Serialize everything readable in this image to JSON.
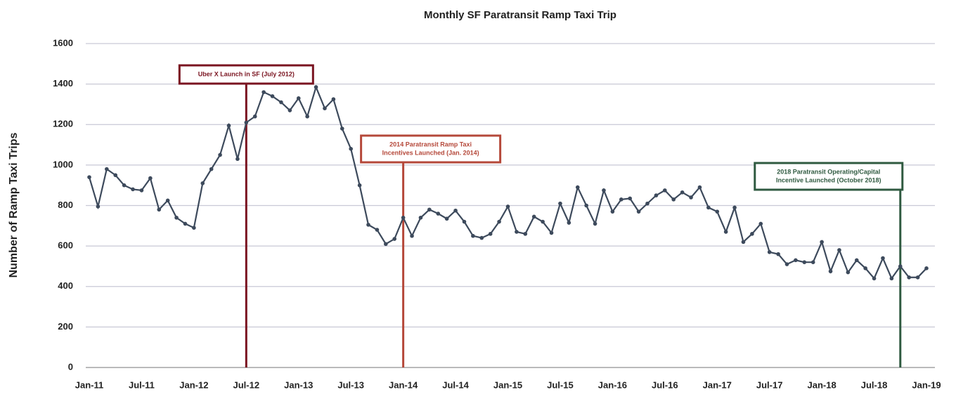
{
  "chart_data": {
    "type": "line",
    "title": "Monthly SF Paratransit Ramp Taxi Trip",
    "y_label": "Number of Ramp Taxi Trips",
    "categories": [
      "Jan-11",
      null,
      null,
      null,
      null,
      null,
      "Jul-11",
      null,
      null,
      null,
      null,
      null,
      "Jan-12",
      null,
      null,
      null,
      null,
      null,
      "Jul-12",
      null,
      null,
      null,
      null,
      null,
      "Jan-13",
      null,
      null,
      null,
      null,
      null,
      "Jul-13",
      null,
      null,
      null,
      null,
      null,
      "Jan-14",
      null,
      null,
      null,
      null,
      null,
      "Jul-14",
      null,
      null,
      null,
      null,
      null,
      "Jan-15",
      null,
      null,
      null,
      null,
      null,
      "Jul-15",
      null,
      null,
      null,
      null,
      null,
      "Jan-16",
      null,
      null,
      null,
      null,
      null,
      "Jul-16",
      null,
      null,
      null,
      null,
      null,
      "Jan-17",
      null,
      null,
      null,
      null,
      null,
      "Jul-17",
      null,
      null,
      null,
      null,
      null,
      "Jan-18",
      null,
      null,
      null,
      null,
      null,
      "Jul-18",
      null,
      null,
      null,
      null,
      null,
      "Jan-19"
    ],
    "series": [
      {
        "name": "Ramp Taxi Trips",
        "color": "#3d4a5c",
        "values": [
          940,
          795,
          980,
          950,
          900,
          880,
          875,
          935,
          780,
          825,
          740,
          710,
          690,
          910,
          980,
          1050,
          1195,
          1030,
          1210,
          1240,
          1360,
          1340,
          1310,
          1270,
          1330,
          1240,
          1385,
          1280,
          1325,
          1180,
          1080,
          900,
          705,
          680,
          610,
          635,
          740,
          650,
          740,
          780,
          760,
          735,
          775,
          720,
          650,
          640,
          660,
          720,
          795,
          670,
          660,
          745,
          720,
          665,
          810,
          715,
          890,
          800,
          710,
          875,
          770,
          830,
          835,
          770,
          810,
          850,
          875,
          830,
          865,
          840,
          890,
          790,
          770,
          670,
          790,
          620,
          660,
          710,
          570,
          560,
          510,
          530,
          520,
          520,
          620,
          475,
          580,
          470,
          530,
          490,
          440,
          540,
          440,
          500,
          445,
          445,
          490
        ]
      }
    ],
    "ylim": [
      0,
      1600
    ],
    "yticks": [
      0,
      200,
      400,
      600,
      800,
      1000,
      1200,
      1400,
      1600
    ],
    "grid": true,
    "annotations": [
      {
        "x": 18,
        "color": "#7a1420",
        "text": [
          "Uber X Launch in SF (July 2012)"
        ]
      },
      {
        "x": 36,
        "color": "#b5483a",
        "text": [
          "2014 Paratransit Ramp Taxi",
          "Incentives Launched (Jan. 2014)"
        ]
      },
      {
        "x": 93,
        "color": "#2f5a40",
        "text": [
          "2018 Paratransit Operating/Capital",
          "Incentive Launched (October 2018)"
        ]
      }
    ]
  }
}
